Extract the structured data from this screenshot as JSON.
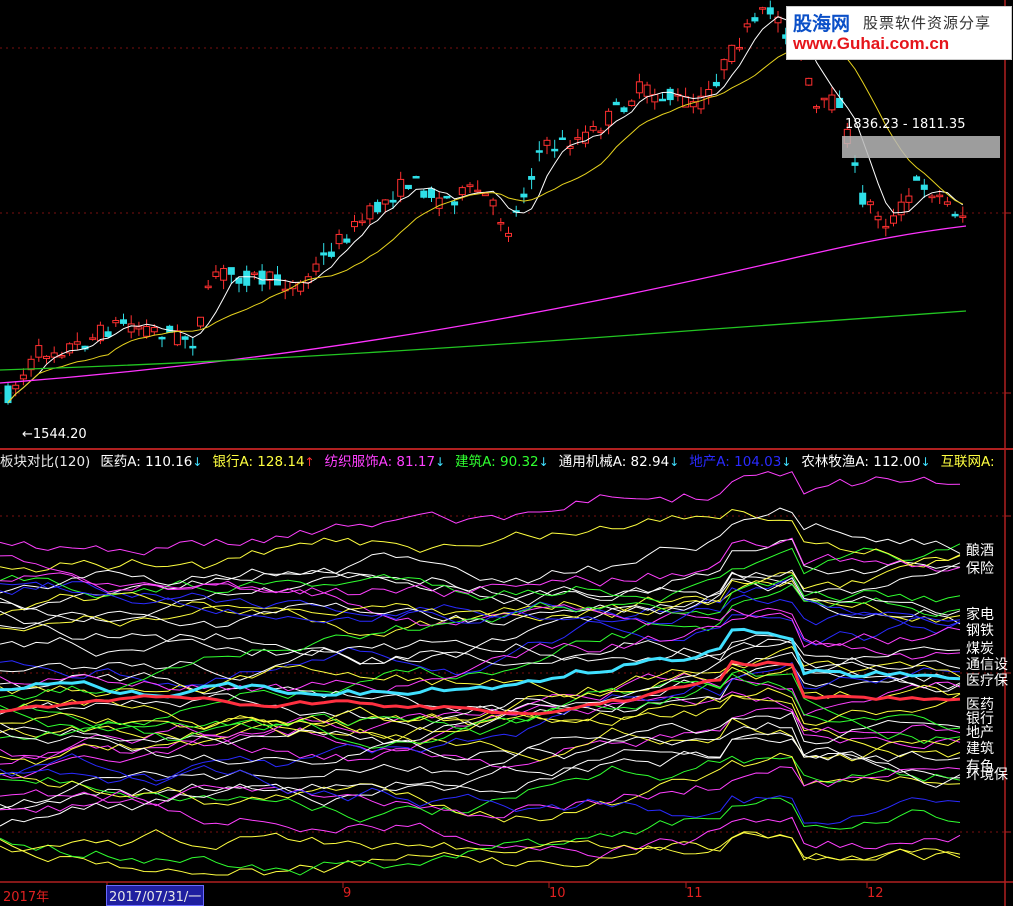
{
  "watermark": {
    "line1_cn": "股海网",
    "line1_sub": "股票软件资源分享",
    "line2": "www.Guhai.com.cn"
  },
  "chart_data": [
    {
      "type": "candlestick",
      "title": "",
      "annotations": {
        "low_label": "1544.20",
        "range_label": "1836.23 - 1811.35"
      },
      "moving_averages": [
        {
          "color": "#ffffff"
        },
        {
          "color": "#e6d21e"
        },
        {
          "color": "#ff33ff"
        },
        {
          "color": "#22c522"
        }
      ],
      "colors": {
        "up": "#ff3030",
        "down": "#2fe0e8"
      }
    },
    {
      "type": "line",
      "title": "板块对比(120)",
      "x_tick_labels": [
        "2017年",
        "2017/07/31/一",
        "9",
        "10",
        "11",
        "12"
      ],
      "legend": [
        {
          "name": "医药A",
          "value": "110.16",
          "arrow": "↓",
          "color": "#ffffff"
        },
        {
          "name": "银行A",
          "value": "128.14",
          "arrow": "↑",
          "color": "#ffff40"
        },
        {
          "name": "纺织服饰A",
          "value": "81.17",
          "arrow": "↓",
          "color": "#ff40ff"
        },
        {
          "name": "建筑A",
          "value": "90.32",
          "arrow": "↓",
          "color": "#30ff30"
        },
        {
          "name": "通用机械A",
          "value": "82.94",
          "arrow": "↓",
          "color": "#ffffff"
        },
        {
          "name": "地产A",
          "value": "104.03",
          "arrow": "↓",
          "color": "#2a2aff"
        },
        {
          "name": "农林牧渔A",
          "value": "112.00",
          "arrow": "↓",
          "color": "#ffffff"
        },
        {
          "name": "互联网A",
          "value": "",
          "arrow": "",
          "color": "#ffff40"
        }
      ],
      "right_labels": [
        "酿酒",
        "保险",
        "家电",
        "钢铁",
        "煤炭",
        "通信设",
        "医疗保",
        "医药",
        "银行",
        "地产",
        "建筑",
        "有色",
        "环境保"
      ]
    }
  ]
}
